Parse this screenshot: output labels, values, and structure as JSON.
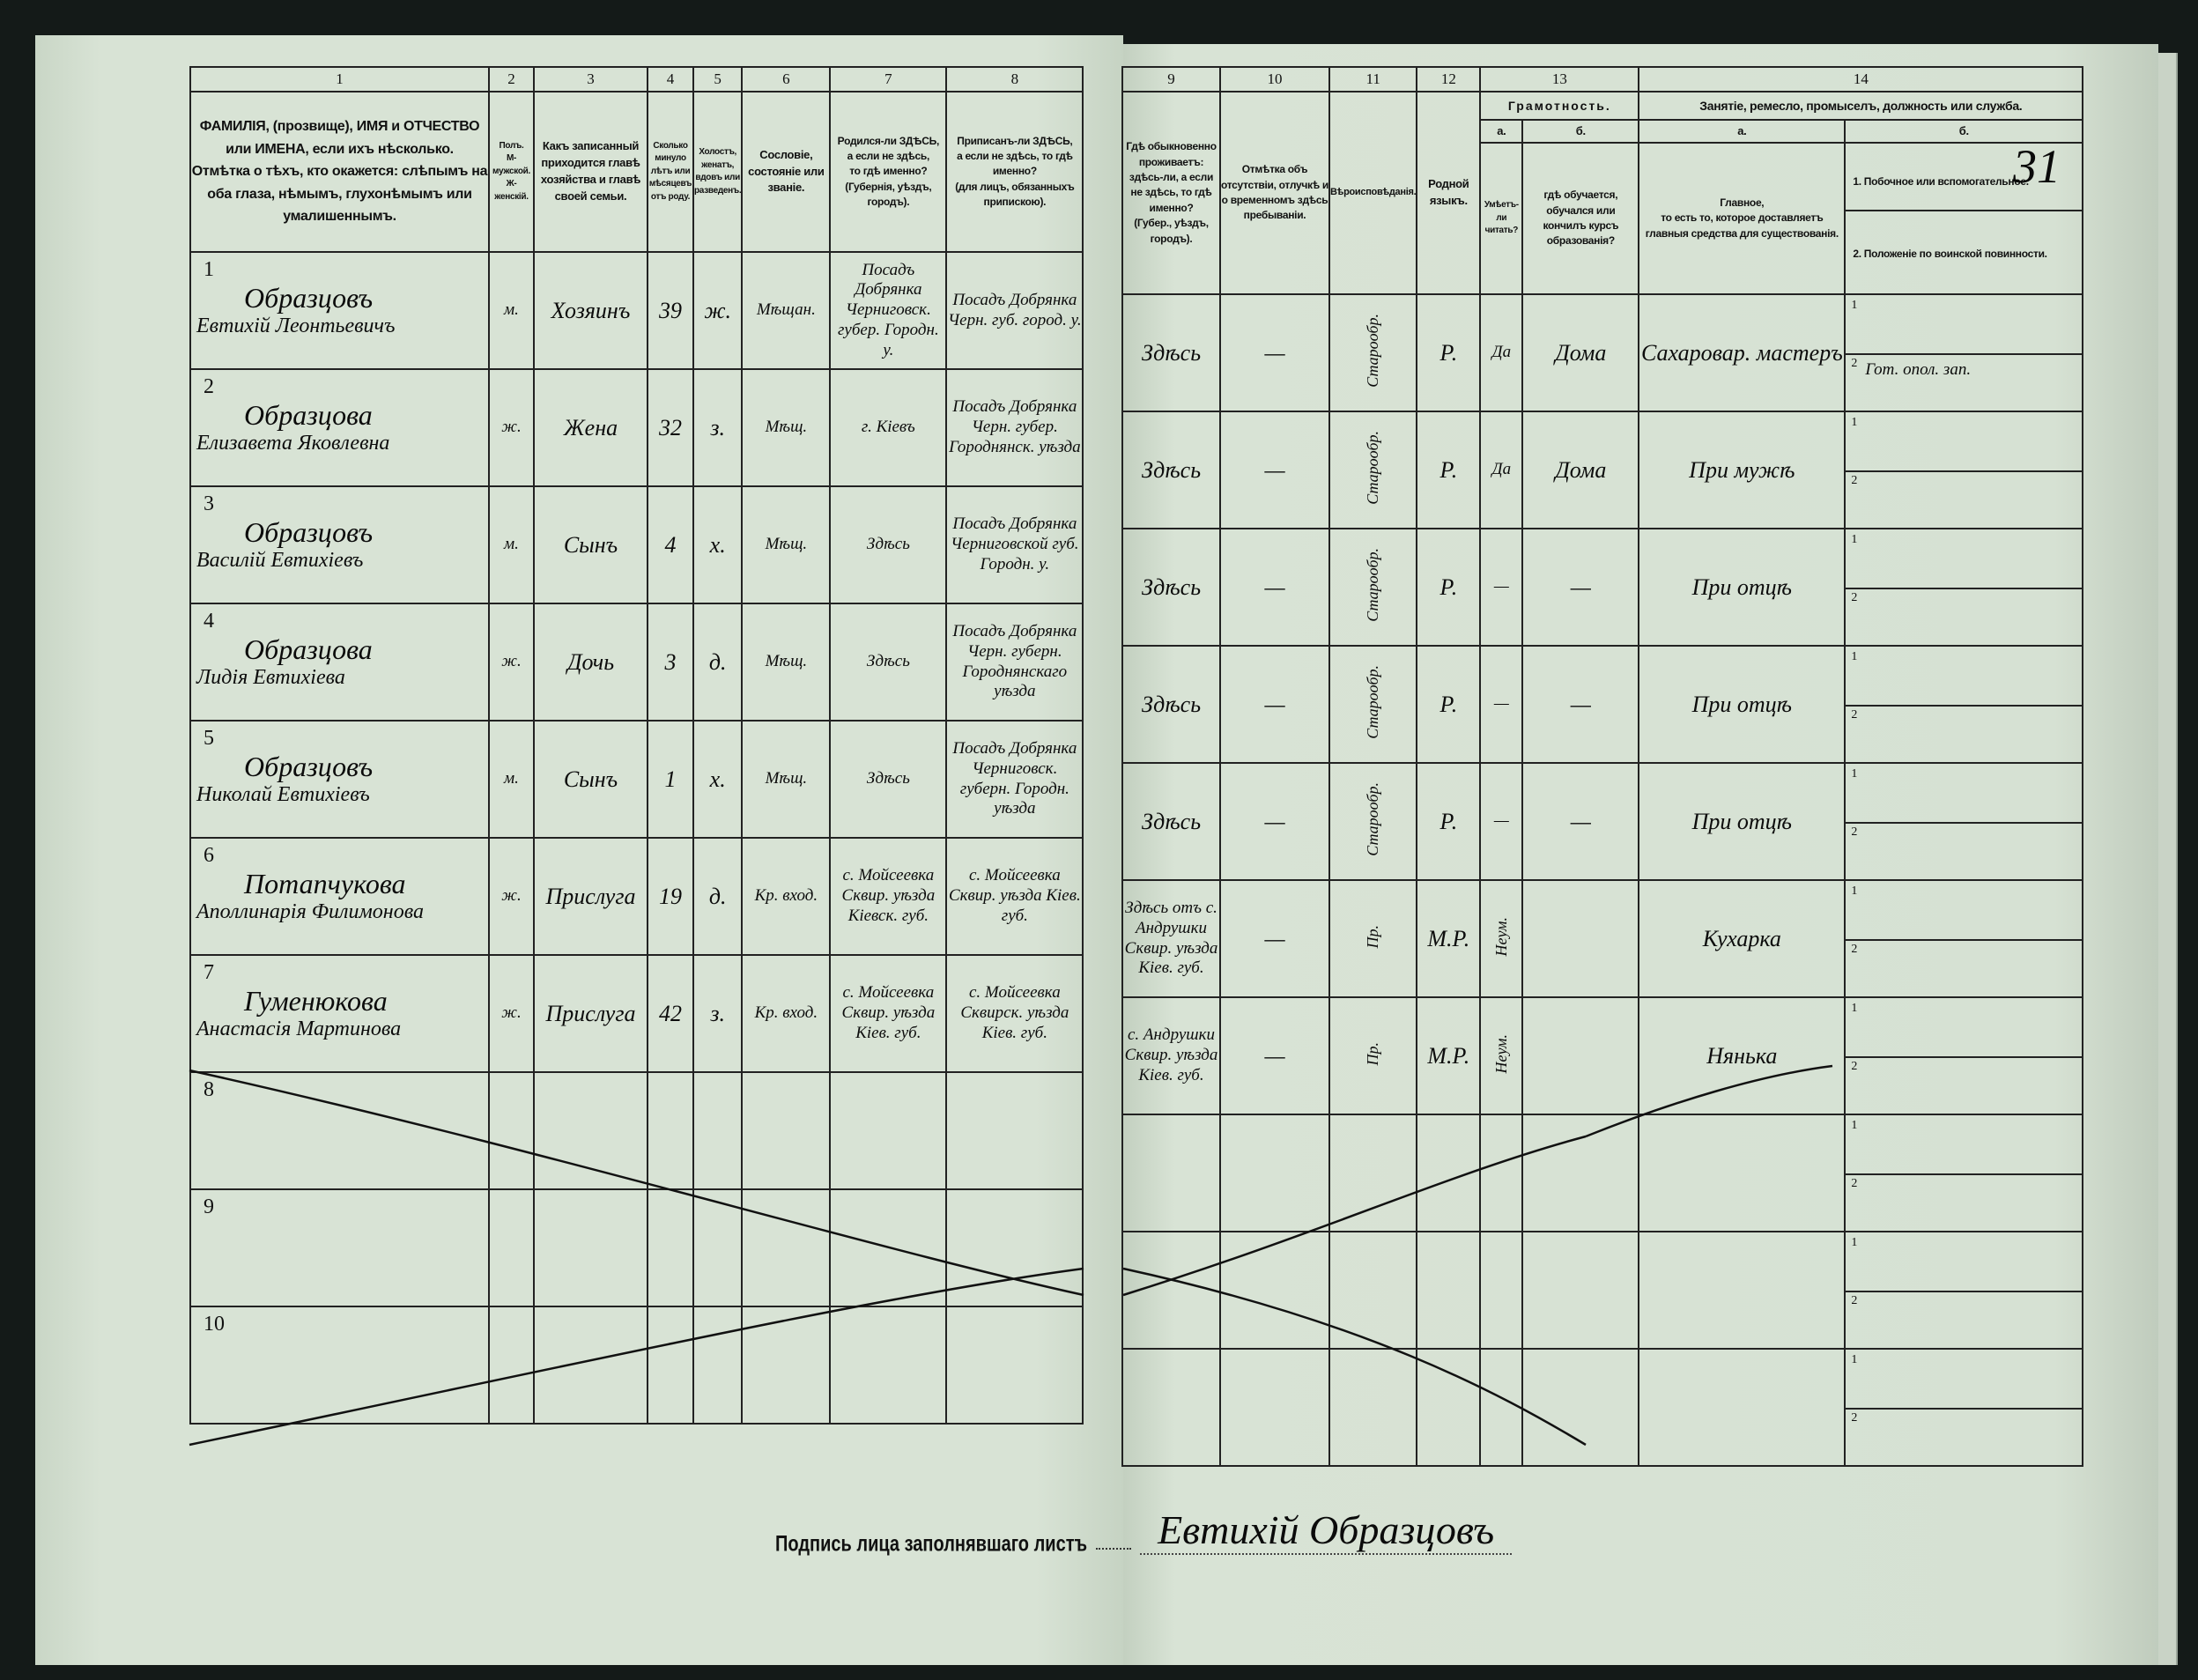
{
  "sheet_number": "31",
  "column_numbers": [
    "1",
    "2",
    "3",
    "4",
    "5",
    "6",
    "7",
    "8",
    "9",
    "10",
    "11",
    "12",
    "13",
    "14"
  ],
  "headers": {
    "c1": "ФАМИЛІЯ, (прозвище), ИМЯ и ОТЧЕСТВО или ИМЕНА, если ихъ нѣсколько.\nОтмѣтка о тѣхъ, кто окажется: слѣпымъ на оба глаза, нѣмымъ, глухонѣмымъ или умалишеннымъ.",
    "c2": "Полъ.\nМ-мужской.\nЖ-женскій.",
    "c3": "Какъ записанный приходится главѣ хозяйства и главѣ своей семьи.",
    "c4": "Сколько минуло лѣтъ или мѣсяцевъ отъ роду.",
    "c5": "Холостъ, женатъ, вдовъ или разведенъ.",
    "c6": "Сословіе, состояніе или званіе.",
    "c7": "Родился-ли ЗДѢСЬ,\nа если не здѣсь,\nто гдѣ именно?\n(Губернія, уѣздъ, городъ).",
    "c8": "Приписанъ-ли ЗДѢСЬ,\nа если не здѣсь, то гдѣ именно?\n(для лицъ, обязанныхъ припискою).",
    "c9": "Гдѣ обыкновенно проживаетъ:\nздѣсь-ли, а если не здѣсь, то гдѣ именно?\n(Губер., уѣздъ, городъ).",
    "c10": "Отмѣтка объ отсутствіи, отлучкѣ и о временномъ здѣсь пребываніи.",
    "c11": "Вѣроисповѣданія.",
    "c12": "Родной языкъ.",
    "c13": "Грамотность.",
    "c13a_letter": "а.",
    "c13a": "Умѣетъ-ли читать?",
    "c13b_letter": "б.",
    "c13b": "гдѣ обучается, обучался или кончилъ курсъ образованія?",
    "c14": "Занятіе, ремесло, промыселъ, должность или служба.",
    "c14a_letter": "а.",
    "c14a": "Главное,\nто есть то, которое доставляетъ главныя средства для существованія.",
    "c14b_letter": "б.",
    "c14b1": "1. Побочное или вспомогательное.",
    "c14b2": "2. Положеніе по воинской повинности."
  },
  "rows": [
    {
      "num": "1",
      "surname": "Образцовъ",
      "given": "Евтихій Леонтьевичъ",
      "sex": "м.",
      "relation": "Хозяинъ",
      "age": "39",
      "marital": "ж.",
      "estate": "Мѣщан.",
      "born": "Посадъ Добрянка Черниговск. губер. Городн. у.",
      "registered": "Посадъ Добрянка Черн. губ. город. у.",
      "residence": "Здѣсь",
      "absence": "—",
      "religion": "Старообр.",
      "language": "Р.",
      "literate": "Да",
      "education": "Дома",
      "occupation": "Сахаровар. мастеръ",
      "side": "",
      "military": "Гот. опол. зап."
    },
    {
      "num": "2",
      "surname": "Образцова",
      "given": "Елизавета Яковлевна",
      "sex": "ж.",
      "relation": "Жена",
      "age": "32",
      "marital": "з.",
      "estate": "Мѣщ.",
      "born": "г. Кіевъ",
      "registered": "Посадъ Добрянка Черн. губер. Городнянск. уѣзда",
      "residence": "Здѣсь",
      "absence": "—",
      "religion": "Старообр.",
      "language": "Р.",
      "literate": "Да",
      "education": "Дома",
      "occupation": "При мужѣ",
      "side": "",
      "military": ""
    },
    {
      "num": "3",
      "surname": "Образцовъ",
      "given": "Василій Евтихіевъ",
      "sex": "м.",
      "relation": "Сынъ",
      "age": "4",
      "marital": "х.",
      "estate": "Мѣщ.",
      "born": "Здѣсь",
      "registered": "Посадъ Добрянка Черниговской губ. Городн. у.",
      "residence": "Здѣсь",
      "absence": "—",
      "religion": "Старообр.",
      "language": "Р.",
      "literate": "—",
      "education": "—",
      "occupation": "При отцѣ",
      "side": "",
      "military": ""
    },
    {
      "num": "4",
      "surname": "Образцова",
      "given": "Лидія Евтихіева",
      "sex": "ж.",
      "relation": "Дочь",
      "age": "3",
      "marital": "д.",
      "estate": "Мѣщ.",
      "born": "Здѣсь",
      "registered": "Посадъ Добрянка Черн. губерн. Городнянскаго уѣзда",
      "residence": "Здѣсь",
      "absence": "—",
      "religion": "Старообр.",
      "language": "Р.",
      "literate": "—",
      "education": "—",
      "occupation": "При отцѣ",
      "side": "",
      "military": ""
    },
    {
      "num": "5",
      "surname": "Образцовъ",
      "given": "Николай Евтихіевъ",
      "sex": "м.",
      "relation": "Сынъ",
      "age": "1",
      "marital": "х.",
      "estate": "Мѣщ.",
      "born": "Здѣсь",
      "registered": "Посадъ Добрянка Черниговск. губерн. Городн. уѣзда",
      "residence": "Здѣсь",
      "absence": "—",
      "religion": "Старообр.",
      "language": "Р.",
      "literate": "—",
      "education": "—",
      "occupation": "При отцѣ",
      "side": "",
      "military": ""
    },
    {
      "num": "6",
      "surname": "Потапчукова",
      "given": "Аполлинарія Филимонова",
      "sex": "ж.",
      "relation": "Прислуга",
      "age": "19",
      "marital": "д.",
      "estate": "Кр. вход.",
      "born": "с. Мойсеевка Сквир. уѣзда Кіевск. губ.",
      "registered": "с. Мойсеевка Сквир. уѣзда Кіев. губ.",
      "residence": "Здѣсь отъ с. Андрушки Сквир. уѣзда Кіев. губ.",
      "absence": "—",
      "religion": "Пр.",
      "language": "М.Р.",
      "literate": "Неум.",
      "education": "",
      "occupation": "Кухарка",
      "side": "",
      "military": ""
    },
    {
      "num": "7",
      "surname": "Гуменюкова",
      "given": "Анастасія Мартинова",
      "sex": "ж.",
      "relation": "Прислуга",
      "age": "42",
      "marital": "з.",
      "estate": "Кр. вход.",
      "born": "с. Мойсеевка Сквир. уѣзда Кіев. губ.",
      "registered": "с. Мойсеевка Сквирск. уѣзда Кіев. губ.",
      "residence": "с. Андрушки Сквир. уѣзда Кіев. губ.",
      "absence": "—",
      "religion": "Пр.",
      "language": "М.Р.",
      "literate": "Неум.",
      "education": "",
      "occupation": "Нянька",
      "side": "",
      "military": ""
    },
    {
      "num": "8"
    },
    {
      "num": "9"
    },
    {
      "num": "10"
    }
  ],
  "sub_labels": [
    "1",
    "2"
  ],
  "signature": {
    "label": "Подпись лица заполнявшаго листъ",
    "value": "Евтихій Образцовъ"
  }
}
